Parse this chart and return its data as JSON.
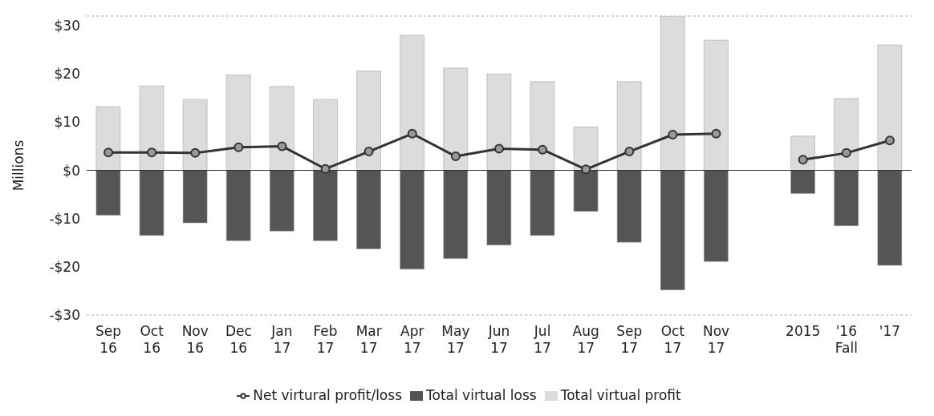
{
  "chart_data": {
    "type": "bar",
    "ylabel": "Millions",
    "stacked": true,
    "categories": [
      "Sep 16",
      "Oct 16",
      "Nov 16",
      "Dec 16",
      "Jan 17",
      "Feb 17",
      "Mar 17",
      "Apr 17",
      "May 17",
      "Jun 17",
      "Jul 17",
      "Aug 17",
      "Sep 17",
      "Oct 17",
      "Nov 17",
      null,
      "2015",
      "'16",
      "'17"
    ],
    "series": [
      {
        "name": "Total virtual profit",
        "color": "#dcdcdc",
        "values": [
          13.2,
          17.5,
          14.7,
          19.8,
          17.4,
          14.7,
          20.6,
          28,
          21.2,
          20,
          18.4,
          9,
          18.4,
          32,
          27,
          null,
          7.1,
          14.9,
          26
        ]
      },
      {
        "name": "Total virtual loss",
        "color": "#555555",
        "values": [
          -9.3,
          -13.5,
          -10.9,
          -14.6,
          -12.6,
          -14.6,
          -16.3,
          -20.5,
          -18.3,
          -15.5,
          -13.5,
          -8.5,
          -14.9,
          -24.8,
          -18.9,
          null,
          -4.8,
          -11.5,
          -19.7
        ]
      },
      {
        "name": "Net virtural profit/loss",
        "type": "line",
        "color": "#333333",
        "marker": "circle",
        "values": [
          3.7,
          3.7,
          3.6,
          4.8,
          5,
          0.3,
          3.9,
          7.6,
          2.9,
          4.5,
          4.3,
          0.2,
          3.9,
          7.4,
          7.6,
          null,
          2.2,
          3.6,
          6.2
        ]
      }
    ],
    "ylim": [
      -30,
      32
    ],
    "yticks": [
      {
        "value": -30,
        "label": "-$30"
      },
      {
        "value": -20,
        "label": "-$20"
      },
      {
        "value": -10,
        "label": "-$10"
      },
      {
        "value": 0,
        "label": "$0"
      },
      {
        "value": 10,
        "label": "$10"
      },
      {
        "value": 20,
        "label": "$20"
      },
      {
        "value": 30,
        "label": "$30"
      }
    ],
    "grid": "y",
    "legend": "bottom",
    "annotations": [
      "Fall"
    ]
  }
}
